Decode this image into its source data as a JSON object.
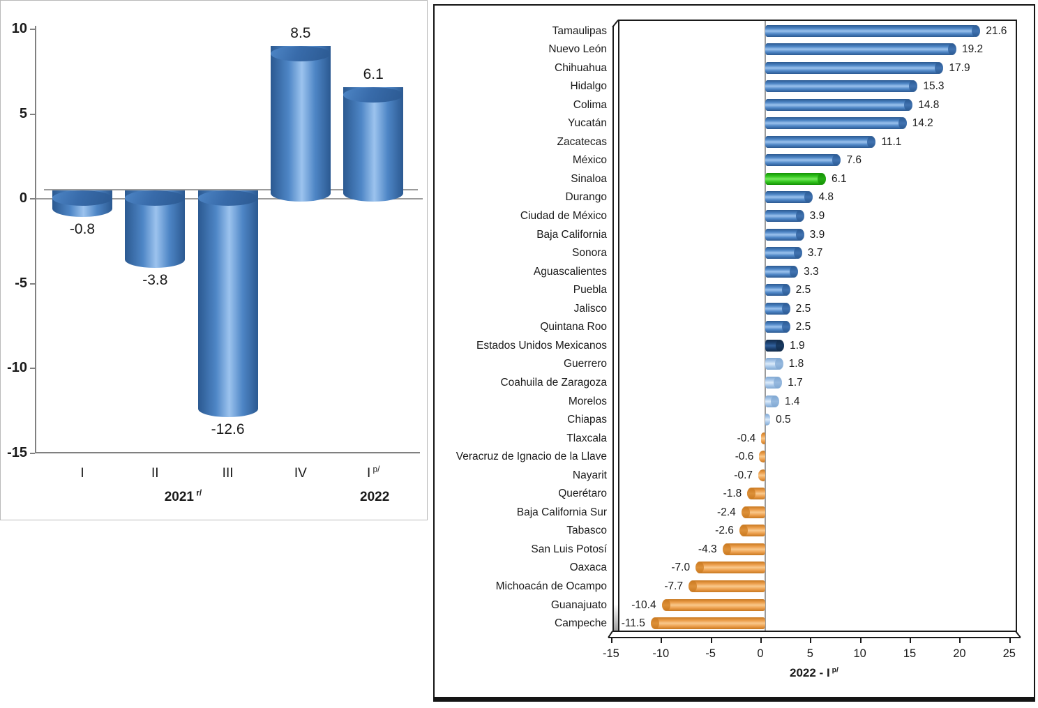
{
  "palette": {
    "text": "#1a1a1a",
    "grid": "#9b9b9b",
    "axis": "#808080",
    "frame": "#1a1a1a",
    "panel_border_left": "#b9b9b9",
    "panel_border_right": "#141414",
    "wall_shadow": "#9e9e9e",
    "series": {
      "blue": {
        "edge": "#2b5991",
        "mid": "#4e86c6",
        "light": "#9cc3ee",
        "cap": "#386baa"
      },
      "green": {
        "edge": "#149104",
        "mid": "#33c61f",
        "light": "#76e95e",
        "cap": "#1ea50e"
      },
      "navy": {
        "edge": "#122b49",
        "mid": "#1d4272",
        "light": "#32619c",
        "cap": "#16365c"
      },
      "lightblue": {
        "edge": "#7fa7d1",
        "mid": "#a9c8ea",
        "light": "#dcebf9",
        "cap": "#8fb4dc"
      },
      "orange": {
        "edge": "#c8781f",
        "mid": "#eda04f",
        "light": "#f9c98c",
        "cap": "#d98a30"
      }
    }
  },
  "chart_data": [
    {
      "id": "quarterly-variation",
      "type": "bar",
      "orientation": "vertical",
      "style": "3d-cylinder",
      "bar_color": "blue",
      "categories": [
        "I",
        "II",
        "III",
        "IV",
        "I"
      ],
      "category_sups": [
        "",
        "",
        "",
        "",
        "p/"
      ],
      "values": [
        -0.8,
        -3.8,
        -12.6,
        8.5,
        6.1
      ],
      "value_labels": [
        "-0.8",
        "-3.8",
        "-12.6",
        "8.5",
        "6.1"
      ],
      "ylim": [
        -15,
        10
      ],
      "yticks": [
        10,
        5,
        0,
        -5,
        -10,
        -15
      ],
      "ytick_labels": [
        "10",
        "5",
        "0",
        "-5",
        "-10",
        "-15"
      ],
      "grid": "zero-line-only",
      "legend": "none",
      "group_labels": [
        {
          "text": "2021",
          "sup": "r/",
          "under_categories": [
            0,
            1,
            2,
            3
          ]
        },
        {
          "text": "2022",
          "sup": "",
          "under_categories": [
            4
          ]
        }
      ]
    },
    {
      "id": "states-variation",
      "type": "bar",
      "orientation": "horizontal",
      "style": "3d-cylinder",
      "xlabel": {
        "text": "2022 - I",
        "sup": "p/"
      },
      "xlim": [
        -15,
        25
      ],
      "xticks": [
        -15,
        -10,
        -5,
        0,
        5,
        10,
        15,
        20,
        25
      ],
      "xtick_labels": [
        "-15",
        "-10",
        "-5",
        "0",
        "5",
        "10",
        "15",
        "20",
        "25"
      ],
      "grid": "zero-line-only",
      "legend": "none",
      "bars": [
        {
          "name": "Tamaulipas",
          "value": 21.6,
          "label": "21.6",
          "color": "blue"
        },
        {
          "name": "Nuevo León",
          "value": 19.2,
          "label": "19.2",
          "color": "blue"
        },
        {
          "name": "Chihuahua",
          "value": 17.9,
          "label": "17.9",
          "color": "blue"
        },
        {
          "name": "Hidalgo",
          "value": 15.3,
          "label": "15.3",
          "color": "blue"
        },
        {
          "name": "Colima",
          "value": 14.8,
          "label": "14.8",
          "color": "blue"
        },
        {
          "name": "Yucatán",
          "value": 14.2,
          "label": "14.2",
          "color": "blue"
        },
        {
          "name": "Zacatecas",
          "value": 11.1,
          "label": "11.1",
          "color": "blue"
        },
        {
          "name": "México",
          "value": 7.6,
          "label": "7.6",
          "color": "blue"
        },
        {
          "name": "Sinaloa",
          "value": 6.1,
          "label": "6.1",
          "color": "green"
        },
        {
          "name": "Durango",
          "value": 4.8,
          "label": "4.8",
          "color": "blue"
        },
        {
          "name": "Ciudad de México",
          "value": 3.9,
          "label": "3.9",
          "color": "blue"
        },
        {
          "name": "Baja California",
          "value": 3.9,
          "label": "3.9",
          "color": "blue"
        },
        {
          "name": "Sonora",
          "value": 3.7,
          "label": "3.7",
          "color": "blue"
        },
        {
          "name": "Aguascalientes",
          "value": 3.3,
          "label": "3.3",
          "color": "blue"
        },
        {
          "name": "Puebla",
          "value": 2.5,
          "label": "2.5",
          "color": "blue"
        },
        {
          "name": "Jalisco",
          "value": 2.5,
          "label": "2.5",
          "color": "blue"
        },
        {
          "name": "Quintana Roo",
          "value": 2.5,
          "label": "2.5",
          "color": "blue"
        },
        {
          "name": "Estados Unidos Mexicanos",
          "value": 1.9,
          "label": "1.9",
          "color": "navy"
        },
        {
          "name": "Guerrero",
          "value": 1.8,
          "label": "1.8",
          "color": "lightblue"
        },
        {
          "name": "Coahuila de Zaragoza",
          "value": 1.7,
          "label": "1.7",
          "color": "lightblue"
        },
        {
          "name": "Morelos",
          "value": 1.4,
          "label": "1.4",
          "color": "lightblue"
        },
        {
          "name": "Chiapas",
          "value": 0.5,
          "label": "0.5",
          "color": "lightblue"
        },
        {
          "name": "Tlaxcala",
          "value": -0.4,
          "label": "-0.4",
          "color": "orange"
        },
        {
          "name": "Veracruz de Ignacio de la Llave",
          "value": -0.6,
          "label": "-0.6",
          "color": "orange"
        },
        {
          "name": "Nayarit",
          "value": -0.7,
          "label": "-0.7",
          "color": "orange"
        },
        {
          "name": "Querétaro",
          "value": -1.8,
          "label": "-1.8",
          "color": "orange"
        },
        {
          "name": "Baja California Sur",
          "value": -2.4,
          "label": "-2.4",
          "color": "orange"
        },
        {
          "name": "Tabasco",
          "value": -2.6,
          "label": "-2.6",
          "color": "orange"
        },
        {
          "name": "San Luis Potosí",
          "value": -4.3,
          "label": "-4.3",
          "color": "orange"
        },
        {
          "name": "Oaxaca",
          "value": -7.0,
          "label": "-7.0",
          "color": "orange"
        },
        {
          "name": "Michoacán de Ocampo",
          "value": -7.7,
          "label": "-7.7",
          "color": "orange"
        },
        {
          "name": "Guanajuato",
          "value": -10.4,
          "label": "-10.4",
          "color": "orange"
        },
        {
          "name": "Campeche",
          "value": -11.5,
          "label": "-11.5",
          "color": "orange"
        }
      ]
    }
  ]
}
